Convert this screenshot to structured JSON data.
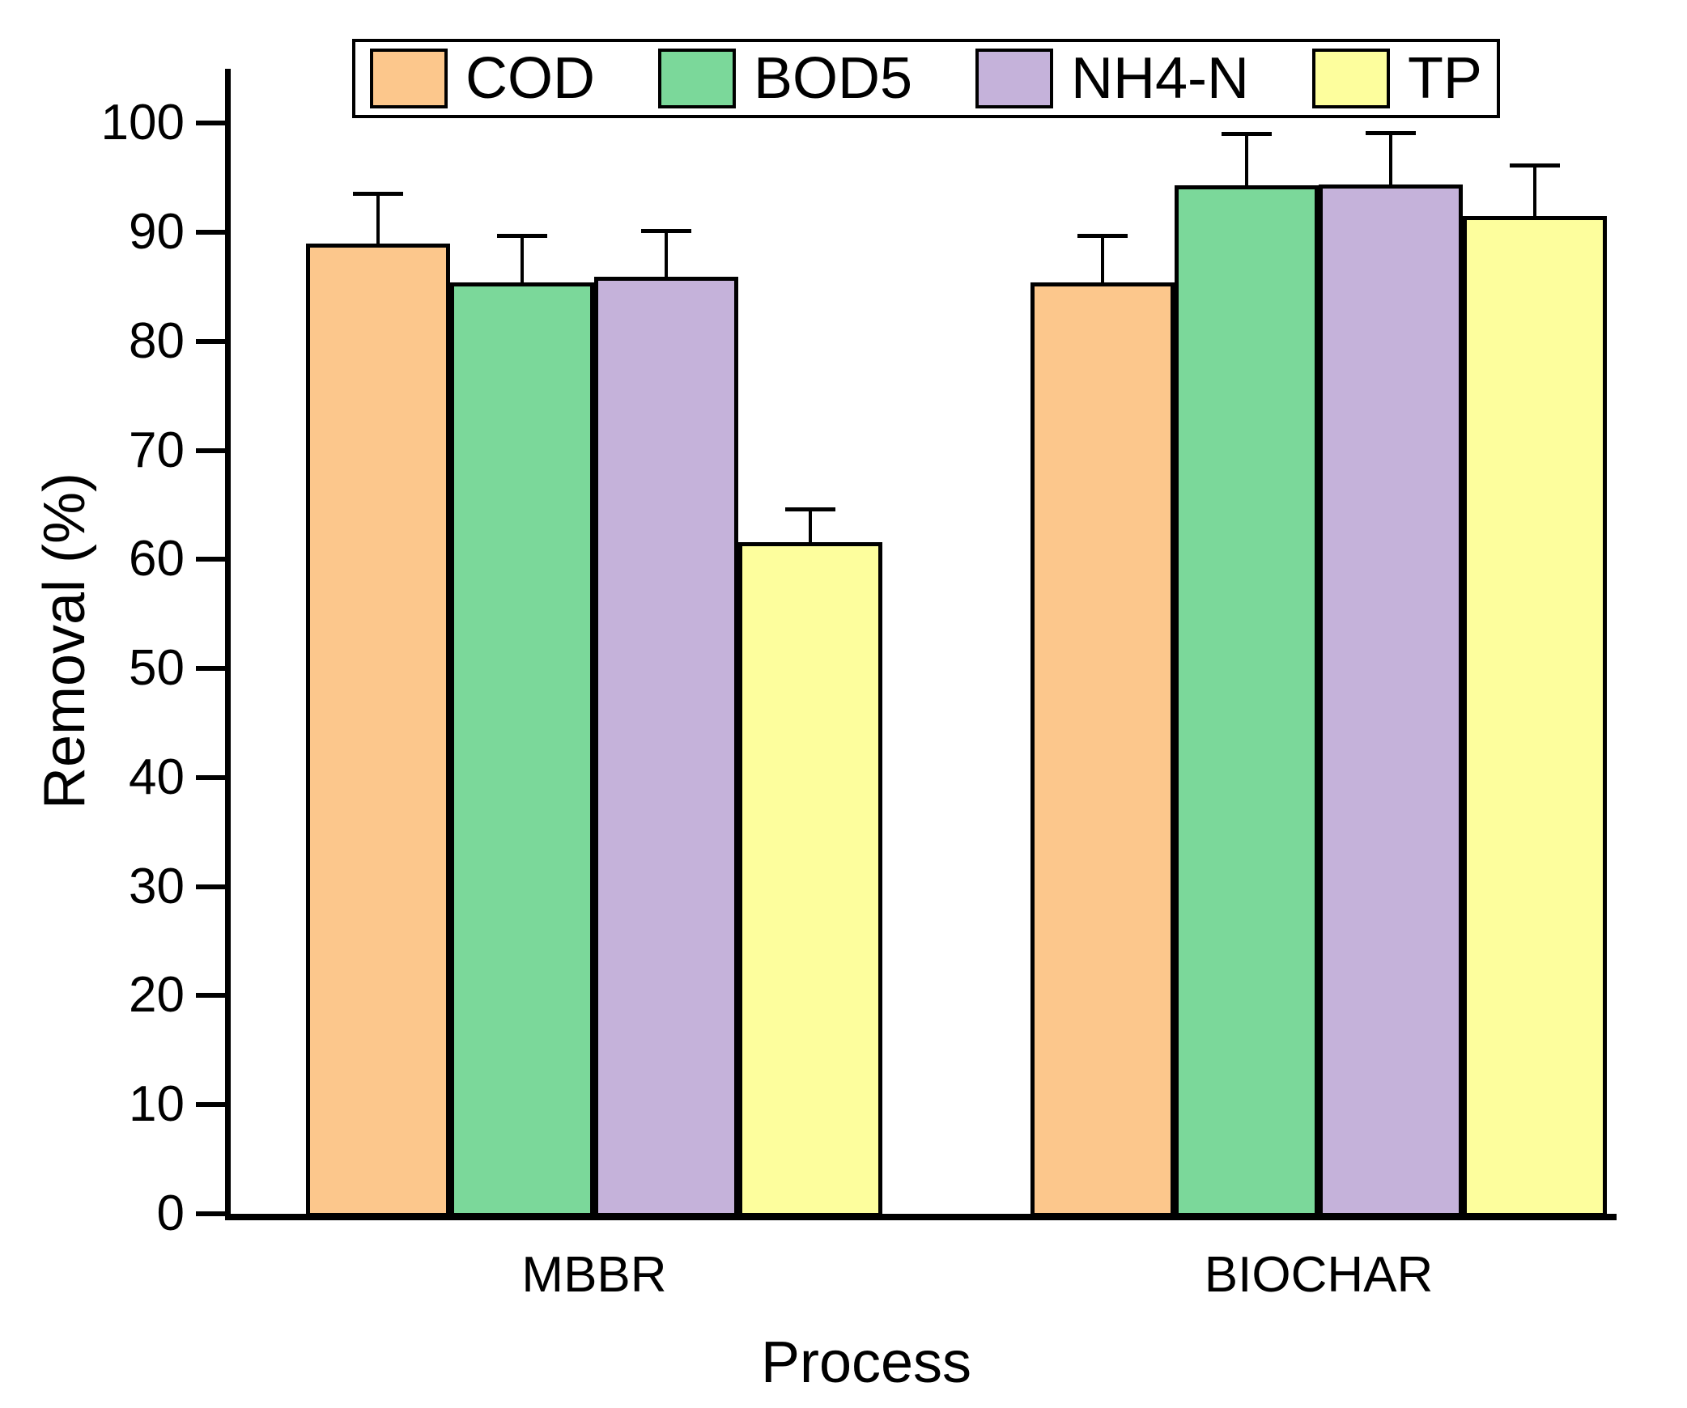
{
  "figure": {
    "background": "#ffffff",
    "axis_color": "#000000"
  },
  "chart_data": {
    "type": "bar",
    "title": "",
    "xlabel": "Process",
    "ylabel": "Removal (%)",
    "ylim": [
      0,
      105
    ],
    "yticks": [
      0,
      10,
      20,
      30,
      40,
      50,
      60,
      70,
      80,
      90,
      100
    ],
    "grid": false,
    "legend_position": "top",
    "error_bars": "upper",
    "bar_border_color": "#000000",
    "categories": [
      "MBBR",
      "BIOCHAR"
    ],
    "series": [
      {
        "name": "COD",
        "color": "#FCC78C",
        "values": [
          89.0,
          85.4
        ],
        "errors": [
          4.5,
          4.3
        ]
      },
      {
        "name": "BOD5",
        "color": "#7BD89A",
        "values": [
          85.4,
          94.3
        ],
        "errors": [
          4.3,
          4.7
        ]
      },
      {
        "name": "NH4-N",
        "color": "#C5B2DA",
        "values": [
          85.9,
          94.4
        ],
        "errors": [
          4.2,
          4.7
        ]
      },
      {
        "name": "TP",
        "color": "#FDFE9D",
        "values": [
          61.6,
          91.5
        ],
        "errors": [
          3.0,
          4.6
        ]
      }
    ]
  }
}
